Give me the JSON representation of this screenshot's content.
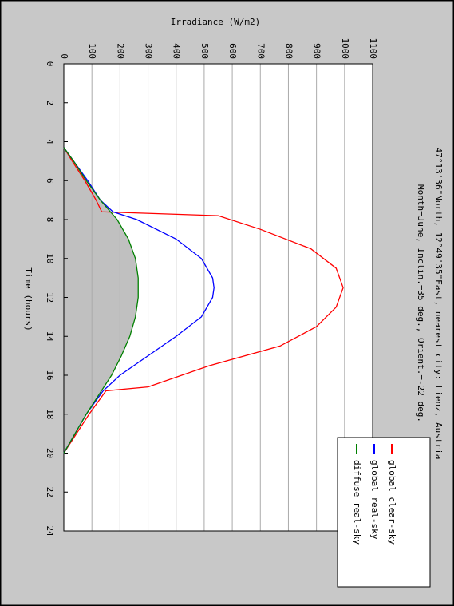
{
  "chart_data": {
    "type": "line",
    "title": [
      "47°13'36\"North, 12°49'35\"East, nearest city: Lienz, Austria",
      "Month=June, Inclin.=35 deg., Orient.=-22 deg."
    ],
    "x_label": "Time (hours)",
    "y_label": "Irradiance (W/m2)",
    "xlim": [
      0,
      24
    ],
    "xticks": [
      0,
      2,
      4,
      6,
      8,
      10,
      12,
      14,
      16,
      18,
      20,
      22,
      24
    ],
    "ylim": [
      0,
      1100
    ],
    "yticks": [
      0,
      100,
      200,
      300,
      400,
      500,
      600,
      700,
      800,
      900,
      1000,
      1100
    ],
    "grid": true,
    "legend": "lower-right",
    "fill_under": "diffuse real-sky",
    "fill_color": "#c0c0c0",
    "series": [
      {
        "name": "global clear-sky",
        "color": "#ff0000",
        "x": [
          4.3,
          5,
          6,
          7,
          7.6,
          7.8,
          8.5,
          9.5,
          10.5,
          11.5,
          12.5,
          13.5,
          14.5,
          15.5,
          16.6,
          16.8,
          18,
          19,
          20
        ],
        "values": [
          0,
          30,
          75,
          115,
          135,
          550,
          700,
          880,
          970,
          995,
          970,
          900,
          770,
          520,
          300,
          150,
          90,
          45,
          0
        ]
      },
      {
        "name": "global real-sky",
        "color": "#0000ff",
        "x": [
          4.3,
          5,
          6,
          7,
          7.6,
          8,
          9,
          10,
          11,
          11.5,
          12,
          13,
          14,
          15,
          16,
          16.8,
          18,
          19,
          20
        ],
        "values": [
          0,
          35,
          85,
          130,
          175,
          260,
          400,
          490,
          530,
          535,
          530,
          490,
          400,
          300,
          200,
          140,
          80,
          40,
          0
        ]
      },
      {
        "name": "diffuse real-sky",
        "color": "#008000",
        "x": [
          4.3,
          5,
          6,
          7,
          8,
          9,
          10,
          11,
          12,
          13,
          14,
          15,
          16,
          17,
          18,
          19,
          20
        ],
        "values": [
          0,
          35,
          80,
          130,
          190,
          230,
          255,
          265,
          265,
          255,
          235,
          205,
          170,
          125,
          80,
          40,
          0
        ]
      }
    ]
  }
}
